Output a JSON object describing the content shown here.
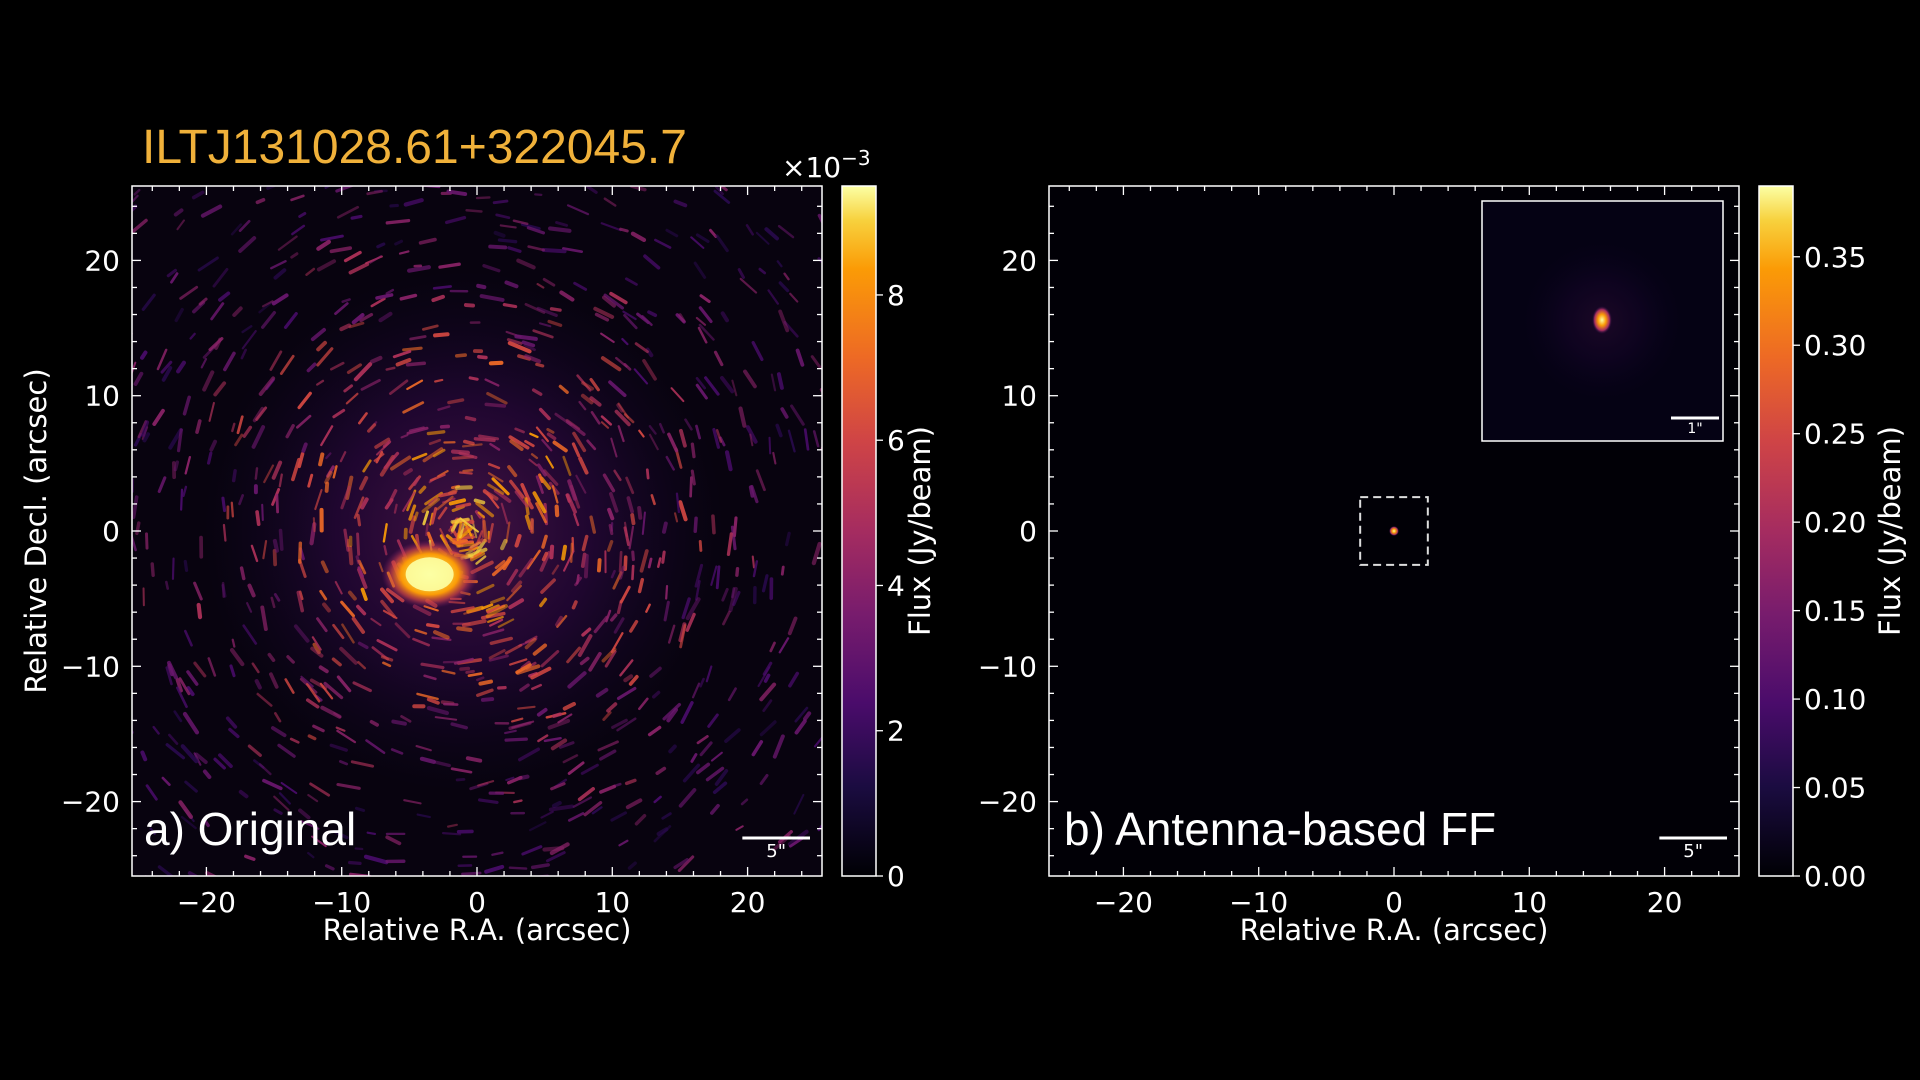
{
  "source_name": "ILTJ131028.61+322045.7",
  "title_color": "#f0b13a",
  "colormap": "inferno",
  "chart_data": [
    {
      "type": "heatmap",
      "panel_label": "a) Original",
      "xlabel": "Relative R.A. (arcsec)",
      "ylabel": "Relative Decl. (arcsec)",
      "xlim": [
        -25.5,
        25.5
      ],
      "ylim": [
        -25.5,
        25.5
      ],
      "xticks": [
        -20,
        -10,
        0,
        10,
        20
      ],
      "yticks": [
        -20,
        -10,
        0,
        10,
        20
      ],
      "xtick_labels": [
        "−20",
        "−10",
        "0",
        "10",
        "20"
      ],
      "ytick_labels": [
        "−20",
        "−10",
        "0",
        "10",
        "20"
      ],
      "scalebar_label": "5\"",
      "scalebar_length_arcsec": 5,
      "colorbar": {
        "label": "Flux (Jy/beam)",
        "multiplier": "×10",
        "multiplier_exp": "−3",
        "range": [
          0,
          9.5
        ],
        "ticks": [
          0,
          2,
          4,
          6,
          8
        ],
        "tick_labels": [
          "0",
          "2",
          "4",
          "6",
          "8"
        ]
      },
      "features": [
        {
          "kind": "bright-compact",
          "x": -3.5,
          "y": -3.2,
          "peak": 9.5
        },
        {
          "kind": "diffuse-radial-artifacts",
          "center": [
            -1,
            0
          ],
          "level": 3
        }
      ]
    },
    {
      "type": "heatmap",
      "panel_label": "b) Antenna-based FF",
      "xlabel": "Relative R.A. (arcsec)",
      "ylabel": "",
      "xlim": [
        -25.5,
        25.5
      ],
      "ylim": [
        -25.5,
        25.5
      ],
      "xticks": [
        -20,
        -10,
        0,
        10,
        20
      ],
      "yticks": [
        -20,
        -10,
        0,
        10,
        20
      ],
      "xtick_labels": [
        "−20",
        "−10",
        "0",
        "10",
        "20"
      ],
      "ytick_labels": [
        "−20",
        "−10",
        "0",
        "10",
        "20"
      ],
      "scalebar_label": "5\"",
      "scalebar_length_arcsec": 5,
      "inset": {
        "region": [
          -2.5,
          2.5,
          -2.5,
          2.5
        ],
        "scalebar_label": "1\"",
        "scalebar_length_arcsec": 1
      },
      "colorbar": {
        "label": "Flux (Jy/beam)",
        "range": [
          0,
          0.39
        ],
        "ticks": [
          0,
          0.05,
          0.1,
          0.15,
          0.2,
          0.25,
          0.3,
          0.35
        ],
        "tick_labels": [
          "0.00",
          "0.05",
          "0.10",
          "0.15",
          "0.20",
          "0.25",
          "0.30",
          "0.35"
        ]
      },
      "features": [
        {
          "kind": "point-source",
          "x": 0,
          "y": 0,
          "peak": 0.39
        }
      ]
    }
  ]
}
